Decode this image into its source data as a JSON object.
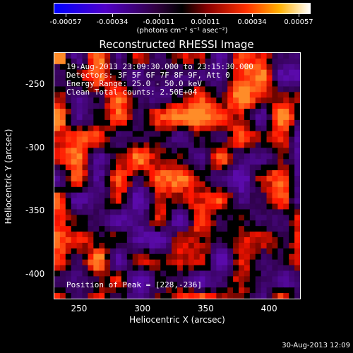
{
  "colorbar": {
    "tick_labels": [
      "-0.00057",
      "-0.00034",
      "-0.00011",
      "0.00011",
      "0.00034",
      "0.00057"
    ],
    "units": "(photons cm⁻² s⁻¹ asec⁻²)"
  },
  "title": "Reconstructed RHESSI Image",
  "info": {
    "time": "19-Aug-2013 23:09:30.000 to 23:15:30.000",
    "detectors": "Detectors: 3F 5F 6F 7F 8F 9F, Att 0",
    "energy": "Energy Range: 25.0 - 50.0 keV",
    "method": "Clean    Total counts: 2.50E+04",
    "peak": "Position of Peak = [228,-236]"
  },
  "axes": {
    "xlabel": "Heliocentric X (arcsec)",
    "ylabel": "Heliocentric Y (arcsec)",
    "xticks": [
      "250",
      "300",
      "350",
      "400"
    ],
    "yticks": [
      "-250",
      "-300",
      "-350",
      "-400"
    ],
    "xlim": [
      230,
      425
    ],
    "ylim": [
      -420,
      -225
    ]
  },
  "timestamp": "30-Aug-2013 12:09"
}
